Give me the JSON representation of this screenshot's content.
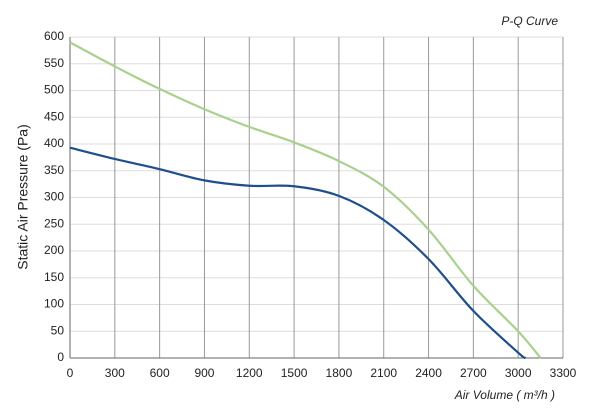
{
  "chart_data": {
    "type": "line",
    "title": "P-Q Curve",
    "x_label": "Air Volume ( m³/h )",
    "y_label": "Static Air Pressure  (Pa)",
    "xlim": [
      0,
      3300
    ],
    "xticks": [
      0,
      300,
      600,
      900,
      1200,
      1500,
      1800,
      2100,
      2400,
      2700,
      3000,
      3300
    ],
    "ylim": [
      0,
      600
    ],
    "yticks": [
      0,
      50,
      100,
      150,
      200,
      250,
      300,
      350,
      400,
      450,
      500,
      550,
      600
    ],
    "grid": true,
    "series": [
      {
        "color": "#a9d18e",
        "x": [
          0,
          300,
          600,
          900,
          1200,
          1500,
          1800,
          2100,
          2400,
          2700,
          3000,
          3150
        ],
        "values": [
          590,
          545,
          503,
          465,
          432,
          403,
          368,
          320,
          240,
          135,
          50,
          0
        ]
      },
      {
        "color": "#1f4e8c",
        "x": [
          0,
          300,
          600,
          900,
          1200,
          1500,
          1800,
          2100,
          2400,
          2700,
          3000,
          3050
        ],
        "values": [
          393,
          372,
          353,
          332,
          322,
          321,
          303,
          258,
          185,
          88,
          10,
          0
        ]
      }
    ]
  }
}
